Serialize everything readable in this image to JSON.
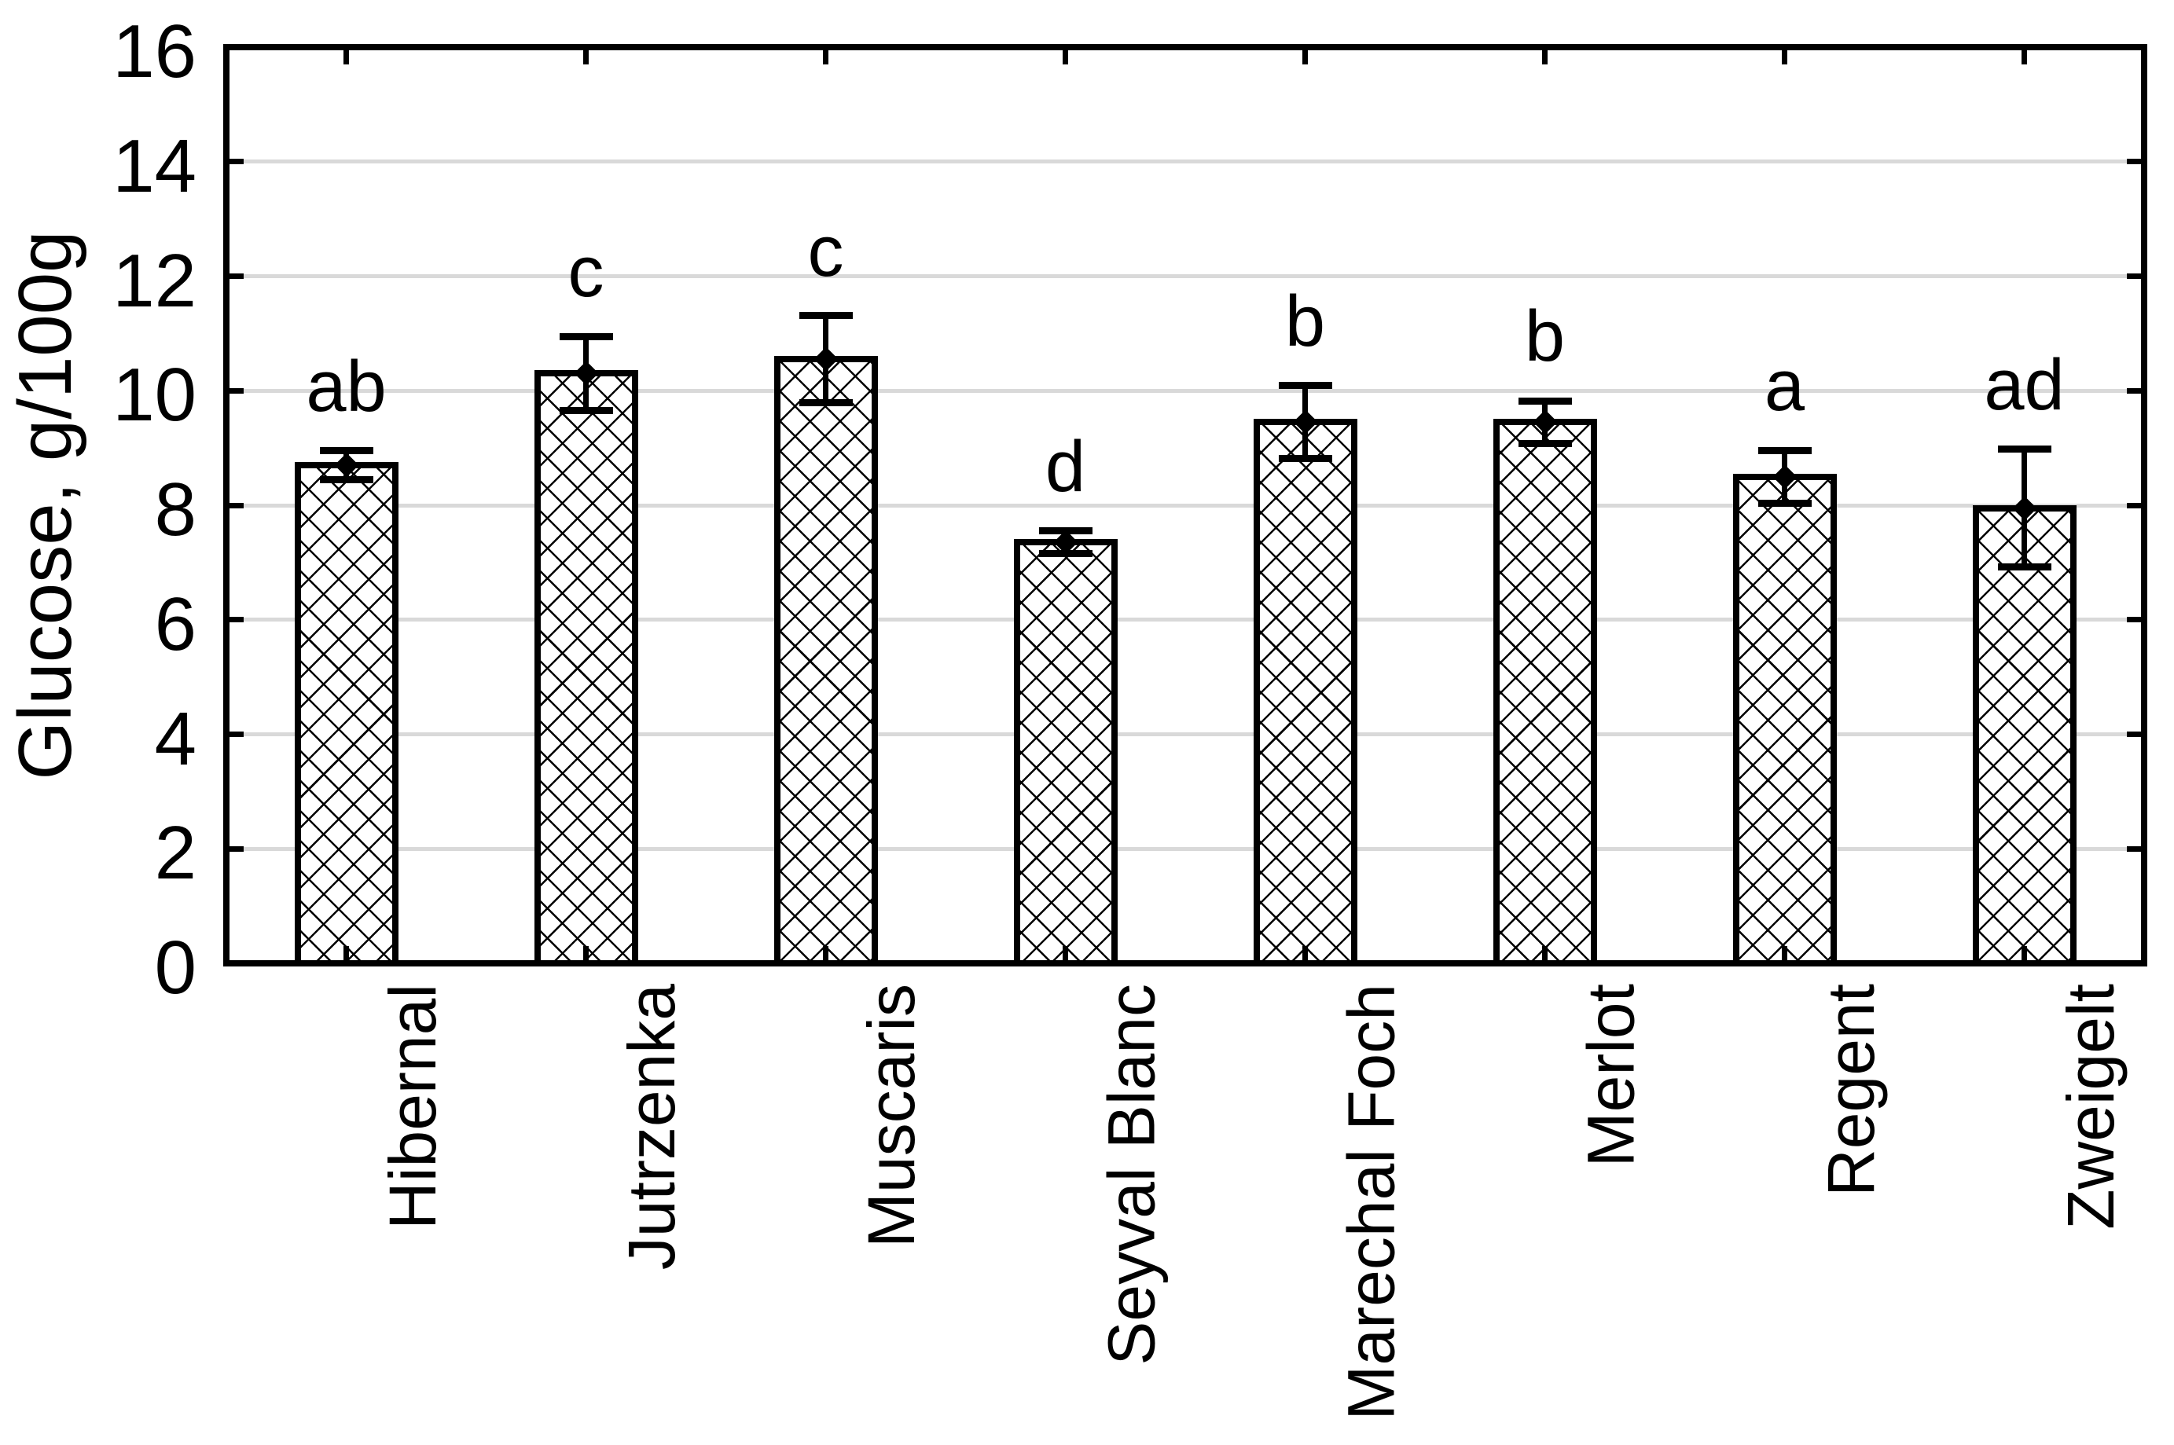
{
  "chart_data": {
    "type": "bar",
    "title": "",
    "xlabel": "",
    "ylabel": "Glucose, g/100g",
    "ylim": [
      0,
      16
    ],
    "yticks": [
      0,
      2,
      4,
      6,
      8,
      10,
      12,
      14,
      16
    ],
    "grid": "horizontal gridlines at every labeled tick (2-14), light gray",
    "legend_position": "none",
    "categories": [
      "Hibernal",
      "Jutrzenka",
      "Muscaris",
      "Seyval Blanc",
      "Marechal Foch",
      "Merlot",
      "Regent",
      "Zweigelt"
    ],
    "series": [
      {
        "name": "Glucose, g/100g",
        "values": [
          8.7,
          10.3,
          10.55,
          7.35,
          9.45,
          9.45,
          8.5,
          7.95
        ],
        "errors": [
          0.25,
          0.65,
          0.76,
          0.2,
          0.64,
          0.37,
          0.46,
          1.03
        ]
      }
    ],
    "significance_letters": [
      "ab",
      "c",
      "c",
      "d",
      "b",
      "b",
      "a",
      "ad"
    ],
    "bar_style": {
      "fill": "#ffffff",
      "hatch": "diagonal-crosshatch",
      "edge_color": "#000000"
    },
    "error_bar_style": "black whiskers with wide caps and diamond mean marker",
    "x_label_rotation": "90deg counterclockwise, reading bottom to top"
  },
  "colors": {
    "background": "#ffffff",
    "ink": "#000000",
    "gridline": "#d9d9d9"
  }
}
